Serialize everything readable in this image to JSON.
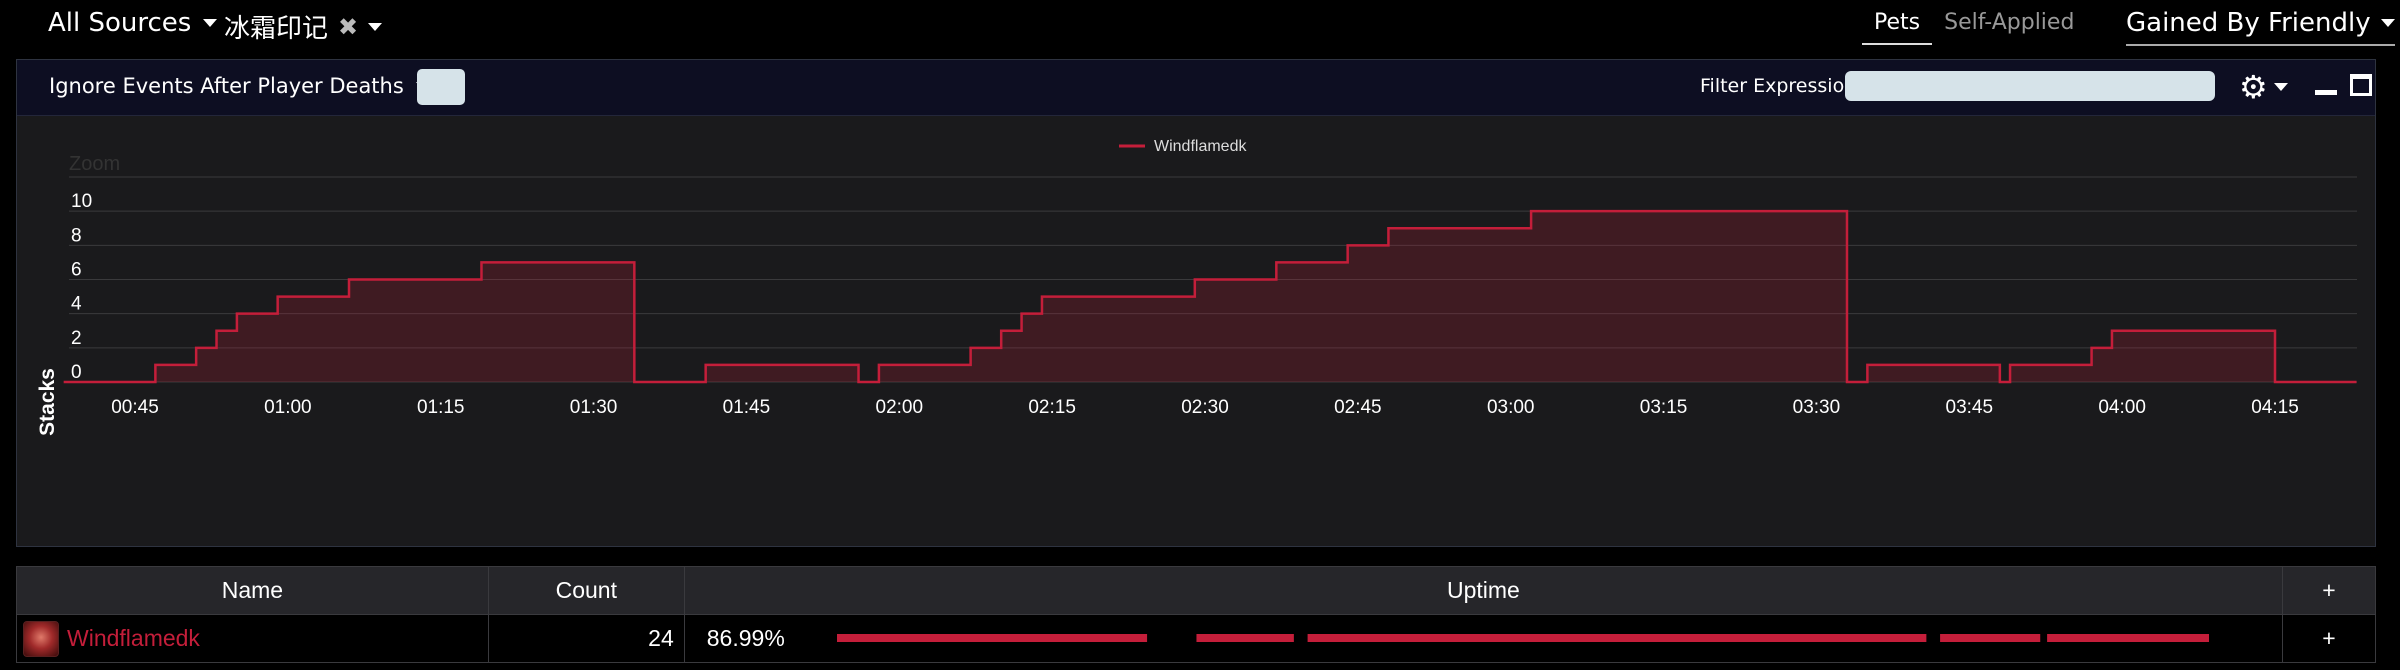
{
  "topbar": {
    "source_label": "All Sources",
    "aura_label": "冰霜印记",
    "aura_clear": "✖",
    "tabs": [
      "Pets",
      "Self-Applied"
    ],
    "gained_label": "Gained By Friendly"
  },
  "panel": {
    "ignore_label": "Ignore Events After Player Deaths",
    "filter_label": "Filter Expression:",
    "filter_value": ""
  },
  "chart_data": {
    "type": "area",
    "legend": [
      "Windflamedk"
    ],
    "ylabel": "Stacks",
    "zoom_label": "Zoom",
    "ylim": [
      0,
      10
    ],
    "y_ticks": [
      0,
      2,
      4,
      6,
      8,
      10
    ],
    "x_ticks": [
      "00:45",
      "01:00",
      "01:15",
      "01:30",
      "01:45",
      "02:00",
      "02:15",
      "02:30",
      "02:45",
      "03:00",
      "03:15",
      "03:30",
      "03:45",
      "04:00",
      "04:15"
    ],
    "series": [
      {
        "name": "Windflamedk",
        "color": "#c41e3a",
        "points": [
          [
            "00:38",
            0
          ],
          [
            "00:47",
            1
          ],
          [
            "00:51",
            2
          ],
          [
            "00:53",
            3
          ],
          [
            "00:55",
            4
          ],
          [
            "00:59",
            5
          ],
          [
            "01:06",
            6
          ],
          [
            "01:19",
            7
          ],
          [
            "01:34",
            0
          ],
          [
            "01:41",
            1
          ],
          [
            "01:56",
            0
          ],
          [
            "01:58",
            1
          ],
          [
            "02:07",
            2
          ],
          [
            "02:10",
            3
          ],
          [
            "02:12",
            4
          ],
          [
            "02:14",
            5
          ],
          [
            "02:29",
            6
          ],
          [
            "02:37",
            7
          ],
          [
            "02:44",
            8
          ],
          [
            "02:48",
            9
          ],
          [
            "03:02",
            10
          ],
          [
            "03:33",
            0
          ],
          [
            "03:35",
            1
          ],
          [
            "03:48",
            0
          ],
          [
            "03:49",
            1
          ],
          [
            "03:57",
            2
          ],
          [
            "03:59",
            3
          ],
          [
            "04:15",
            0
          ],
          [
            "04:23",
            0
          ]
        ]
      }
    ]
  },
  "table": {
    "headers": {
      "name": "Name",
      "count": "Count",
      "uptime": "Uptime",
      "add": "+"
    },
    "rows": [
      {
        "name": "Windflamedk",
        "count": "24",
        "uptime": "86.99%",
        "add": "+",
        "segments": [
          [
            0,
            0.226
          ],
          [
            0.262,
            0.333
          ],
          [
            0.343,
            0.794
          ],
          [
            0.804,
            0.877
          ],
          [
            0.882,
            1.0
          ]
        ]
      }
    ]
  }
}
